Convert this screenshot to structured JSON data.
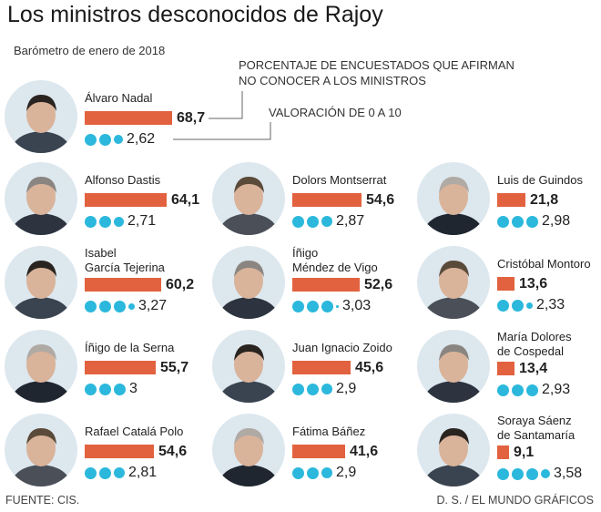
{
  "title": "Los ministros desconocidos de Rajoy",
  "subtitle": "Barómetro de enero de 2018",
  "legend": {
    "percent_line1": "PORCENTAJE DE ENCUESTADOS QUE AFIRMAN",
    "percent_line2": "NO CONOCER A LOS MINISTROS",
    "rating": "VALORACIÓN DE 0 A 10"
  },
  "footer": {
    "source": "FUENTE:  CIS.",
    "credit": "D. S. / EL MUNDO GRÁFICOS"
  },
  "colors": {
    "bar": "#e2623f",
    "dot": "#2bb8dc",
    "avatar_bg": "#dde7ee"
  },
  "chart_data": {
    "type": "bar",
    "series": [
      {
        "name": "PORCENTAJE DE ENCUESTADOS QUE AFIRMAN NO CONOCER A LOS MINISTROS"
      },
      {
        "name": "VALORACIÓN DE 0 A 10"
      }
    ],
    "ministers": [
      {
        "name_lines": [
          "Álvaro Nadal"
        ],
        "unknown_pct": 68.7,
        "unknown_label": "68,7",
        "rating": 2.62,
        "rating_label": "2,62"
      },
      {
        "name_lines": [
          "Alfonso Dastis"
        ],
        "unknown_pct": 64.1,
        "unknown_label": "64,1",
        "rating": 2.71,
        "rating_label": "2,71"
      },
      {
        "name_lines": [
          "Dolors Montserrat"
        ],
        "unknown_pct": 54.6,
        "unknown_label": "54,6",
        "rating": 2.87,
        "rating_label": "2,87"
      },
      {
        "name_lines": [
          "Luis de Guindos"
        ],
        "unknown_pct": 21.8,
        "unknown_label": "21,8",
        "rating": 2.98,
        "rating_label": "2,98"
      },
      {
        "name_lines": [
          "Isabel",
          "García Tejerina"
        ],
        "unknown_pct": 60.2,
        "unknown_label": "60,2",
        "rating": 3.27,
        "rating_label": "3,27"
      },
      {
        "name_lines": [
          "Íñigo",
          "Méndez de Vigo"
        ],
        "unknown_pct": 52.6,
        "unknown_label": "52,6",
        "rating": 3.03,
        "rating_label": "3,03"
      },
      {
        "name_lines": [
          "Cristóbal Montoro"
        ],
        "unknown_pct": 13.6,
        "unknown_label": "13,6",
        "rating": 2.33,
        "rating_label": "2,33"
      },
      {
        "name_lines": [
          "Íñigo de la Serna"
        ],
        "unknown_pct": 55.7,
        "unknown_label": "55,7",
        "rating": 3,
        "rating_label": "3"
      },
      {
        "name_lines": [
          "Juan Ignacio Zoido"
        ],
        "unknown_pct": 45.6,
        "unknown_label": "45,6",
        "rating": 2.9,
        "rating_label": "2,9"
      },
      {
        "name_lines": [
          "María Dolores",
          "de Cospedal"
        ],
        "unknown_pct": 13.4,
        "unknown_label": "13,4",
        "rating": 2.93,
        "rating_label": "2,93"
      },
      {
        "name_lines": [
          "Rafael Catalá Polo"
        ],
        "unknown_pct": 54.6,
        "unknown_label": "54,6",
        "rating": 2.81,
        "rating_label": "2,81"
      },
      {
        "name_lines": [
          "Fátima Báñez"
        ],
        "unknown_pct": 41.6,
        "unknown_label": "41,6",
        "rating": 2.9,
        "rating_label": "2,9"
      },
      {
        "name_lines": [
          "Soraya Sáenz",
          "de Santamaría"
        ],
        "unknown_pct": 9.1,
        "unknown_label": "9,1",
        "rating": 3.58,
        "rating_label": "3,58"
      }
    ]
  }
}
